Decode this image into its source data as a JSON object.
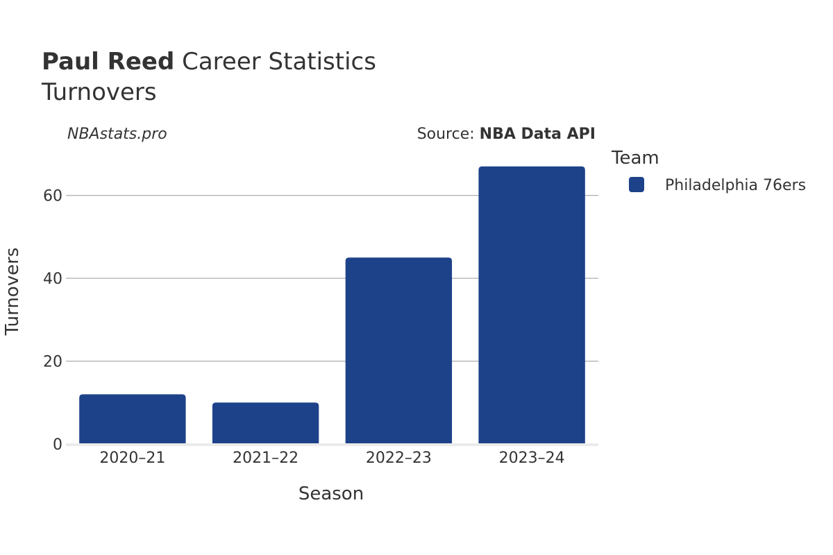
{
  "header": {
    "player_name": "Paul Reed",
    "title_suffix": " Career Statistics",
    "subtitle": "Turnovers"
  },
  "watermark": "NBAstats.pro",
  "source": {
    "prefix": "Source: ",
    "name": "NBA Data API"
  },
  "legend": {
    "title": "Team",
    "placement": "right"
  },
  "colors": {
    "bar": "#1d4289"
  },
  "chart_data": {
    "type": "bar",
    "categories": [
      "2020–21",
      "2021–22",
      "2022–23",
      "2023–24"
    ],
    "series": [
      {
        "name": "Philadelphia 76ers",
        "values": [
          12,
          10,
          45,
          67
        ]
      }
    ],
    "xlabel": "Season",
    "ylabel": "Turnovers",
    "ylim": [
      0,
      70
    ],
    "yticks": [
      0,
      20,
      40,
      60
    ],
    "grid": true
  }
}
